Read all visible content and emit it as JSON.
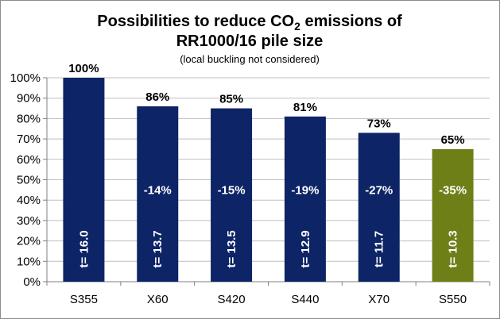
{
  "chart_data": {
    "type": "bar",
    "title_line1_prefix": "Possibilities to reduce CO",
    "title_line1_subscript": "2",
    "title_line1_suffix": " emissions of",
    "title_line2": "RR1000/16 pile size",
    "subtitle": "(local buckling not considered)",
    "xlabel": "",
    "ylabel": "",
    "ylim": [
      0,
      100
    ],
    "y_ticks": [
      "0%",
      "10%",
      "20%",
      "30%",
      "40%",
      "50%",
      "60%",
      "70%",
      "80%",
      "90%",
      "100%"
    ],
    "grid": true,
    "legend": "none",
    "categories": [
      "S355",
      "X60",
      "S420",
      "S440",
      "X70",
      "S550"
    ],
    "values": [
      100,
      86,
      85,
      81,
      73,
      65
    ],
    "value_labels": [
      "100%",
      "86%",
      "85%",
      "81%",
      "73%",
      "65%"
    ],
    "reduction_labels": [
      "",
      "-14%",
      "-15%",
      "-19%",
      "-27%",
      "-35%"
    ],
    "thickness_labels": [
      "t= 16.0",
      "t= 13.7",
      "t= 13.5",
      "t= 12.9",
      "t= 11.7",
      "t= 10.3"
    ],
    "colors": [
      "#0d2466",
      "#0d2466",
      "#0d2466",
      "#0d2466",
      "#0d2466",
      "#6f7f18"
    ]
  }
}
